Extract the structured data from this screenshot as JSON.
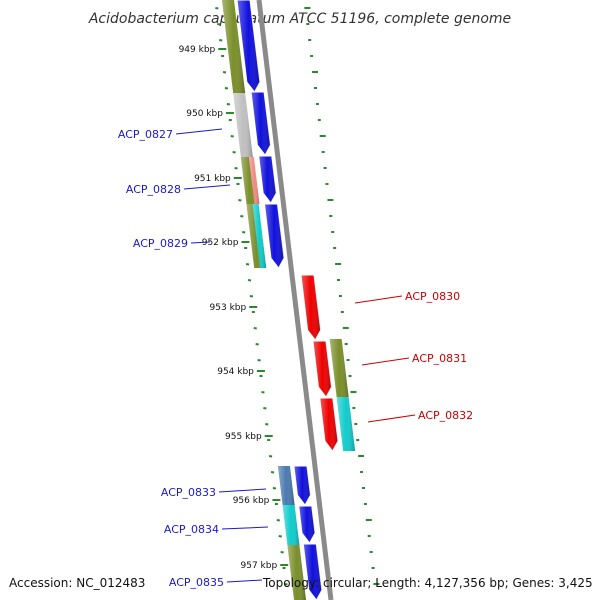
{
  "title": "Acidobacterium capsulatum ATCC 51196, complete genome",
  "footer": {
    "accession": "Accession: NC_012483",
    "summary": "Topology: circular; Length: 4,127,356 bp; Genes: 3,425"
  },
  "ticks": [
    {
      "label": "949 kbp",
      "pos": 949
    },
    {
      "label": "950 kbp",
      "pos": 950
    },
    {
      "label": "951 kbp",
      "pos": 951
    },
    {
      "label": "952 kbp",
      "pos": 952
    },
    {
      "label": "953 kbp",
      "pos": 953
    },
    {
      "label": "954 kbp",
      "pos": 954
    },
    {
      "label": "955 kbp",
      "pos": 955
    },
    {
      "label": "956 kbp",
      "pos": 956
    },
    {
      "label": "957 kbp",
      "pos": 957
    }
  ],
  "genes": [
    {
      "id": "ACP_0827",
      "strand": "forward",
      "color": "#1010dd",
      "label_color": "#1a1ac8"
    },
    {
      "id": "ACP_0828",
      "strand": "forward",
      "color": "#1010dd",
      "label_color": "#1a1ac8"
    },
    {
      "id": "ACP_0829",
      "strand": "forward",
      "color": "#1010dd",
      "label_color": "#1a1ac8"
    },
    {
      "id": "ACP_0830",
      "strand": "reverse",
      "color": "#ee0000",
      "label_color": "#cc0000"
    },
    {
      "id": "ACP_0831",
      "strand": "reverse",
      "color": "#ee0000",
      "label_color": "#cc0000"
    },
    {
      "id": "ACP_0832",
      "strand": "reverse",
      "color": "#ee0000",
      "label_color": "#cc0000"
    },
    {
      "id": "ACP_0833",
      "strand": "forward",
      "color": "#1010dd",
      "label_color": "#1a1ac8"
    },
    {
      "id": "ACP_0834",
      "strand": "forward",
      "color": "#1010dd",
      "label_color": "#1a1ac8"
    },
    {
      "id": "ACP_0835",
      "strand": "forward",
      "color": "#1010dd",
      "label_color": "#1a1ac8"
    }
  ],
  "colors": {
    "backbone": "#8a8a8a",
    "ticks": "#2a8a2a",
    "cog_olive": "#7a8e2a",
    "cog_gray": "#c0c0c0",
    "cog_salmon": "#f08a84",
    "cog_cyan": "#10cccc",
    "cog_steel": "#4a7ab0"
  }
}
